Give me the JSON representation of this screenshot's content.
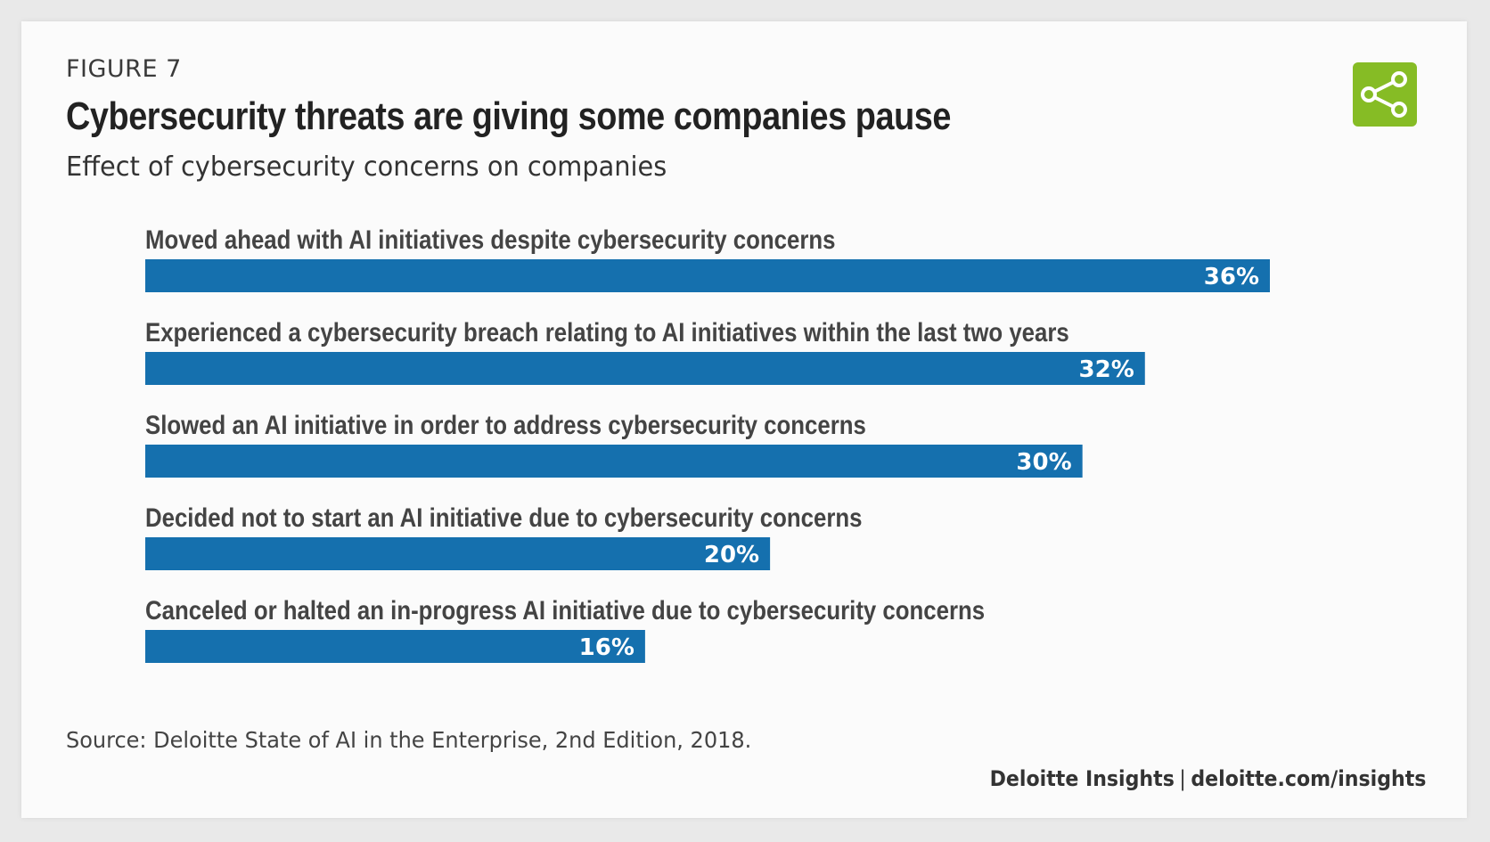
{
  "figure_label": "FIGURE 7",
  "title": "Cybersecurity threats are giving some companies pause",
  "subtitle": "Effect of cybersecurity concerns on companies",
  "share_icon": "share-icon",
  "colors": {
    "bar": "#1570ae",
    "share_button": "#86bc25",
    "background": "#fbfbfb"
  },
  "chart_data": {
    "type": "bar",
    "orientation": "horizontal",
    "categories": [
      "Moved ahead with AI initiatives despite cybersecurity concerns",
      "Experienced a cybersecurity breach relating to AI initiatives within the last two years",
      "Slowed an AI initiative in order to address cybersecurity concerns",
      "Decided not to start an AI initiative due to cybersecurity concerns",
      "Canceled or halted an in-progress AI initiative due to cybersecurity concerns"
    ],
    "values": [
      36,
      32,
      30,
      20,
      16
    ],
    "value_labels": [
      "36%",
      "32%",
      "30%",
      "20%",
      "16%"
    ],
    "xlim": [
      0,
      36
    ],
    "grid": false,
    "legend": "none"
  },
  "source": "Source: Deloitte State of AI in the Enterprise, 2nd Edition, 2018.",
  "footer": {
    "brand": "Deloitte Insights",
    "separator": "|",
    "url": "deloitte.com/insights"
  }
}
